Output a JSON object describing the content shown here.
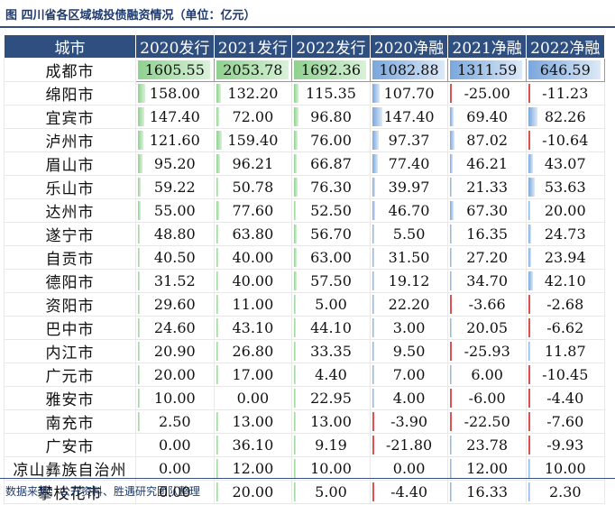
{
  "title": "图 四川省各区域城投债融资情况（单位：亿元）",
  "headers": [
    "城市",
    "2020发行",
    "2021发行",
    "2022发行",
    "2020净融",
    "2021净融",
    "2022净融"
  ],
  "rows": [
    {
      "city": "成都市",
      "values": [
        "1605.55",
        "2053.78",
        "1692.36",
        "1082.88",
        "1311.59",
        "646.59"
      ]
    },
    {
      "city": "绵阳市",
      "values": [
        "158.00",
        "132.20",
        "115.35",
        "107.70",
        "-25.00",
        "-11.23"
      ]
    },
    {
      "city": "宜宾市",
      "values": [
        "147.40",
        "72.00",
        "96.80",
        "147.40",
        "69.40",
        "82.26"
      ]
    },
    {
      "city": "泸州市",
      "values": [
        "121.60",
        "159.40",
        "76.00",
        "97.37",
        "87.02",
        "-10.64"
      ]
    },
    {
      "city": "眉山市",
      "values": [
        "95.20",
        "96.21",
        "66.87",
        "77.40",
        "46.21",
        "43.07"
      ]
    },
    {
      "city": "乐山市",
      "values": [
        "59.22",
        "50.78",
        "76.30",
        "39.97",
        "21.33",
        "53.63"
      ]
    },
    {
      "city": "达州市",
      "values": [
        "55.00",
        "77.60",
        "52.50",
        "46.70",
        "67.30",
        "20.00"
      ]
    },
    {
      "city": "遂宁市",
      "values": [
        "48.80",
        "63.80",
        "56.70",
        "5.50",
        "16.35",
        "24.73"
      ]
    },
    {
      "city": "自贡市",
      "values": [
        "40.50",
        "40.00",
        "63.00",
        "31.50",
        "27.20",
        "23.94"
      ]
    },
    {
      "city": "德阳市",
      "values": [
        "31.52",
        "40.00",
        "57.50",
        "19.12",
        "34.70",
        "42.10"
      ]
    },
    {
      "city": "资阳市",
      "values": [
        "29.60",
        "11.00",
        "5.00",
        "22.20",
        "-3.66",
        "-2.68"
      ]
    },
    {
      "city": "巴中市",
      "values": [
        "24.60",
        "43.10",
        "44.10",
        "3.00",
        "20.05",
        "-6.62"
      ]
    },
    {
      "city": "内江市",
      "values": [
        "20.90",
        "26.80",
        "33.35",
        "9.50",
        "-25.93",
        "11.87"
      ]
    },
    {
      "city": "广元市",
      "values": [
        "20.00",
        "17.00",
        "4.40",
        "7.00",
        "6.00",
        "-10.45"
      ]
    },
    {
      "city": "雅安市",
      "values": [
        "10.00",
        "0.00",
        "22.95",
        "4.00",
        "-6.00",
        "-4.40"
      ]
    },
    {
      "city": "南充市",
      "values": [
        "2.50",
        "13.00",
        "13.00",
        "-3.90",
        "-22.50",
        "-7.60"
      ]
    },
    {
      "city": "广安市",
      "values": [
        "0.00",
        "36.10",
        "9.19",
        "-21.80",
        "23.78",
        "-9.93"
      ]
    },
    {
      "city": "凉山彝族自治州",
      "values": [
        "0.00",
        "12.00",
        "10.00",
        "0.00",
        "12.00",
        "10.00"
      ]
    },
    {
      "city": "攀枝花市",
      "values": [
        "0.00",
        "20.00",
        "5.00",
        "-4.40",
        "16.33",
        "2.30"
      ]
    }
  ],
  "source": "数据来源：公开资料、胜遇研究团队整理",
  "colors": {
    "header_bg": "#2e4f80",
    "bar_issue": "#8fd18f",
    "bar_net": "#7aa7dd",
    "bar_negative": "#e05050"
  }
}
